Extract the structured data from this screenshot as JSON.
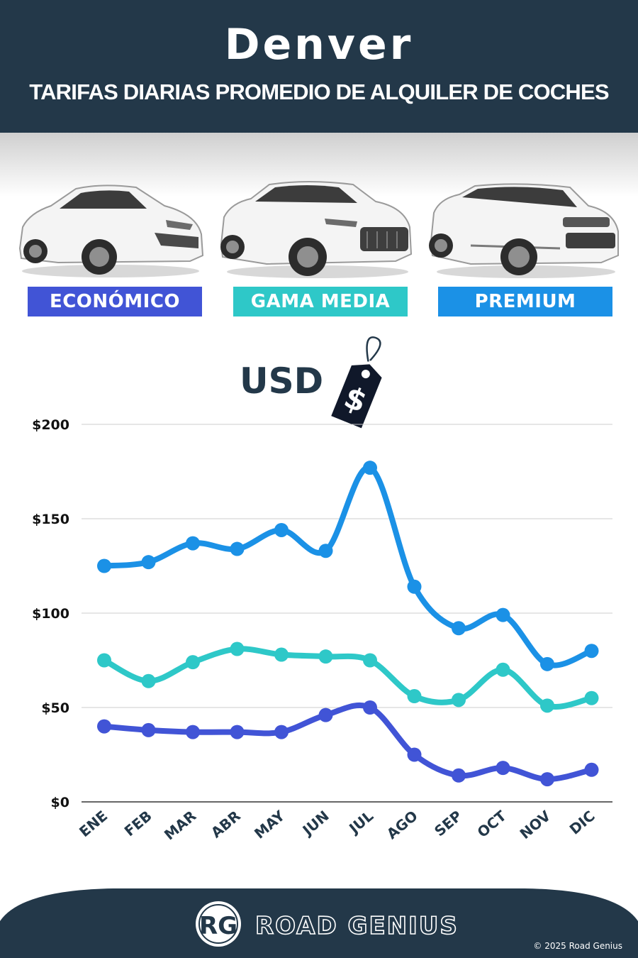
{
  "header": {
    "title": "Denver",
    "subtitle": "TARIFAS DIARIAS PROMEDIO DE ALQUILER DE COCHES"
  },
  "categories": [
    {
      "label": "ECONÓMICO",
      "color": "#4154d6",
      "car_icon": "hatchback-car"
    },
    {
      "label": "GAMA MEDIA",
      "color": "#2ec8c8",
      "car_icon": "suv-car"
    },
    {
      "label": "PREMIUM",
      "color": "#1b91e6",
      "car_icon": "luxury-suv-car"
    }
  ],
  "currency_label": "USD",
  "price_tag_symbol": "$",
  "chart_data": {
    "type": "line",
    "x": [
      "ENE",
      "FEB",
      "MAR",
      "ABR",
      "MAY",
      "JUN",
      "JUL",
      "AGO",
      "SEP",
      "OCT",
      "NOV",
      "DIC"
    ],
    "yticks": [
      "$200",
      "$150",
      "$100",
      "$50",
      "$0"
    ],
    "ylim": [
      0,
      200
    ],
    "grid": true,
    "series": [
      {
        "name": "PREMIUM",
        "color": "#1b91e6",
        "values": [
          125,
          127,
          137,
          134,
          144,
          133,
          177,
          114,
          92,
          99,
          73,
          80
        ]
      },
      {
        "name": "GAMA MEDIA",
        "color": "#2ec8c8",
        "values": [
          75,
          64,
          74,
          81,
          78,
          77,
          75,
          56,
          54,
          70,
          51,
          55
        ]
      },
      {
        "name": "ECONÓMICO",
        "color": "#4154d6",
        "values": [
          40,
          38,
          37,
          37,
          37,
          46,
          50,
          25,
          14,
          18,
          12,
          17
        ]
      }
    ]
  },
  "footer": {
    "logo_initials": "RG",
    "brand": "ROAD GENIUS",
    "copyright": "© 2025 Road Genius"
  }
}
